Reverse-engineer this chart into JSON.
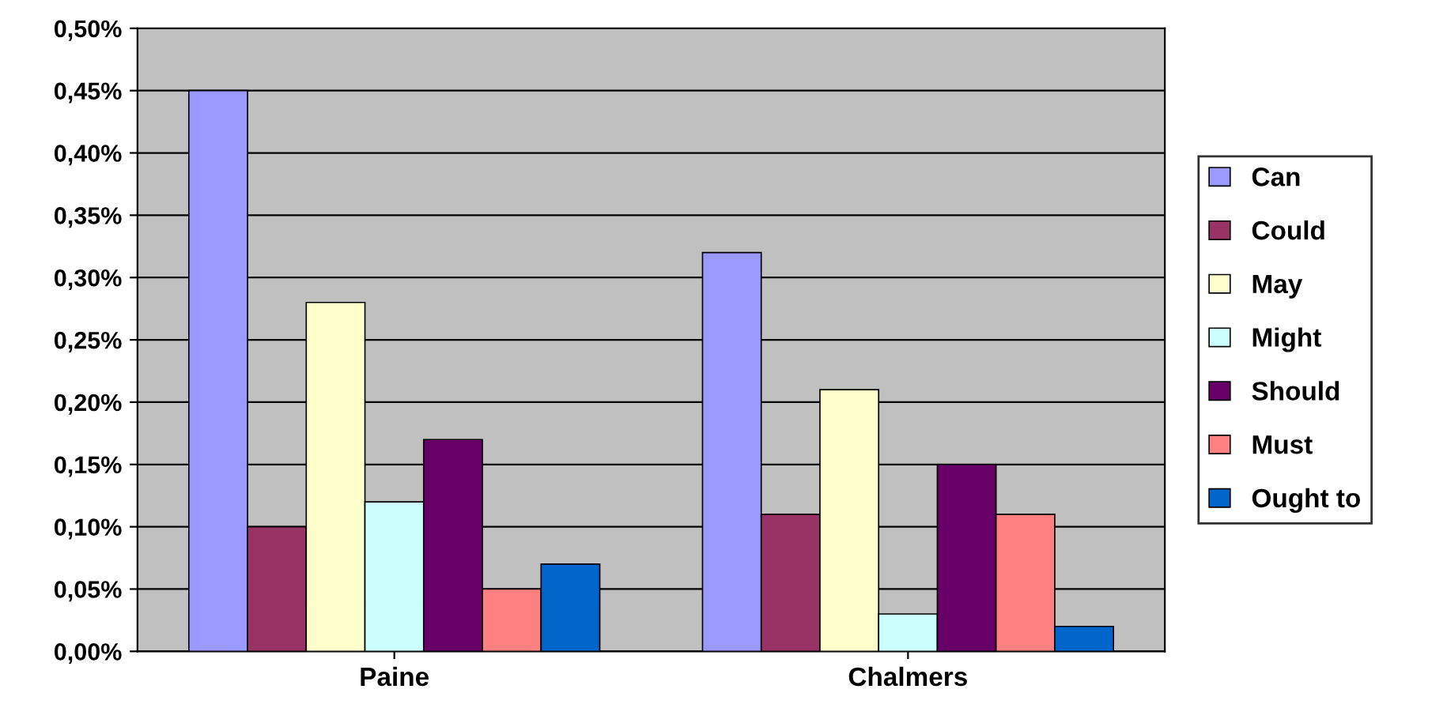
{
  "chart_data": {
    "type": "bar",
    "categories": [
      "Paine",
      "Chalmers"
    ],
    "series": [
      {
        "name": "Can",
        "color": "#9999ff",
        "values": [
          0.45,
          0.32
        ]
      },
      {
        "name": "Could",
        "color": "#993366",
        "values": [
          0.1,
          0.11
        ]
      },
      {
        "name": "May",
        "color": "#ffffcc",
        "values": [
          0.28,
          0.21
        ]
      },
      {
        "name": "Might",
        "color": "#ccffff",
        "values": [
          0.12,
          0.03
        ]
      },
      {
        "name": "Should",
        "color": "#660066",
        "values": [
          0.17,
          0.15
        ]
      },
      {
        "name": "Must",
        "color": "#ff8080",
        "values": [
          0.05,
          0.11
        ]
      },
      {
        "name": "Ought to",
        "color": "#0066cc",
        "values": [
          0.07,
          0.02
        ]
      }
    ],
    "ylim": [
      0,
      0.5
    ],
    "yticks": [
      {
        "value": 0,
        "label": "0,00%"
      },
      {
        "value": 0.05,
        "label": "0,05%"
      },
      {
        "value": 0.1,
        "label": "0,10%"
      },
      {
        "value": 0.15,
        "label": "0,15%"
      },
      {
        "value": 0.2,
        "label": "0,20%"
      },
      {
        "value": 0.25,
        "label": "0,25%"
      },
      {
        "value": 0.3,
        "label": "0,30%"
      },
      {
        "value": 0.35,
        "label": "0,35%"
      },
      {
        "value": 0.4,
        "label": "0,40%"
      },
      {
        "value": 0.45,
        "label": "0,45%"
      },
      {
        "value": 0.5,
        "label": "0,50%"
      }
    ],
    "grid": "y",
    "legend": "right"
  }
}
